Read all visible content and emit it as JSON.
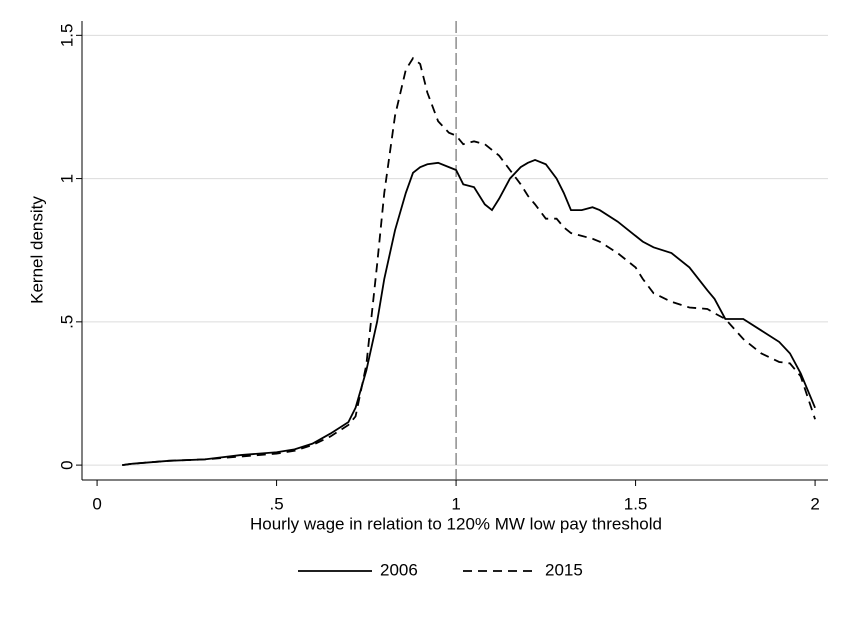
{
  "chart_data": {
    "type": "line",
    "xlabel": "Hourly wage in relation to 120% MW low pay threshold",
    "ylabel": "Kernel density",
    "x": [
      0.07,
      0.1,
      0.2,
      0.3,
      0.4,
      0.5,
      0.55,
      0.6,
      0.65,
      0.7,
      0.72,
      0.75,
      0.78,
      0.8,
      0.83,
      0.86,
      0.88,
      0.9,
      0.92,
      0.95,
      0.98,
      1.0,
      1.02,
      1.05,
      1.08,
      1.1,
      1.12,
      1.15,
      1.18,
      1.2,
      1.22,
      1.25,
      1.28,
      1.3,
      1.32,
      1.35,
      1.38,
      1.4,
      1.45,
      1.5,
      1.52,
      1.55,
      1.6,
      1.65,
      1.7,
      1.72,
      1.75,
      1.8,
      1.85,
      1.9,
      1.93,
      1.96,
      2.0
    ],
    "series": [
      {
        "name": "2006",
        "color": "#000000",
        "dash": "solid",
        "values": [
          0,
          0.005,
          0.015,
          0.02,
          0.035,
          0.045,
          0.055,
          0.075,
          0.11,
          0.15,
          0.2,
          0.33,
          0.5,
          0.65,
          0.82,
          0.95,
          1.02,
          1.04,
          1.05,
          1.055,
          1.04,
          1.03,
          0.98,
          0.97,
          0.91,
          0.89,
          0.93,
          1.0,
          1.04,
          1.055,
          1.065,
          1.05,
          1.0,
          0.95,
          0.89,
          0.89,
          0.9,
          0.89,
          0.85,
          0.8,
          0.78,
          0.76,
          0.74,
          0.69,
          0.61,
          0.58,
          0.51,
          0.51,
          0.47,
          0.43,
          0.39,
          0.32,
          0.2
        ]
      },
      {
        "name": "2015",
        "color": "#000000",
        "dash": "dashed",
        "values": [
          0,
          0.005,
          0.015,
          0.02,
          0.03,
          0.04,
          0.05,
          0.07,
          0.1,
          0.14,
          0.17,
          0.35,
          0.7,
          0.95,
          1.22,
          1.38,
          1.42,
          1.4,
          1.3,
          1.2,
          1.16,
          1.15,
          1.12,
          1.13,
          1.12,
          1.1,
          1.08,
          1.03,
          0.98,
          0.94,
          0.91,
          0.86,
          0.86,
          0.83,
          0.81,
          0.8,
          0.79,
          0.78,
          0.74,
          0.69,
          0.65,
          0.6,
          0.57,
          0.55,
          0.545,
          0.53,
          0.51,
          0.44,
          0.39,
          0.36,
          0.355,
          0.31,
          0.16
        ]
      }
    ],
    "xlim": [
      -0.042,
      2.036
    ],
    "ylim": [
      -0.052,
      1.55
    ],
    "xticks": [
      0,
      {
        "value": 0.5,
        "label": ".5"
      },
      1,
      1.5,
      2
    ],
    "yticks": [
      0,
      {
        "value": 0.5,
        "label": ".5"
      },
      1,
      1.5
    ],
    "grid": true,
    "xline": 1,
    "legend": "bottom"
  }
}
